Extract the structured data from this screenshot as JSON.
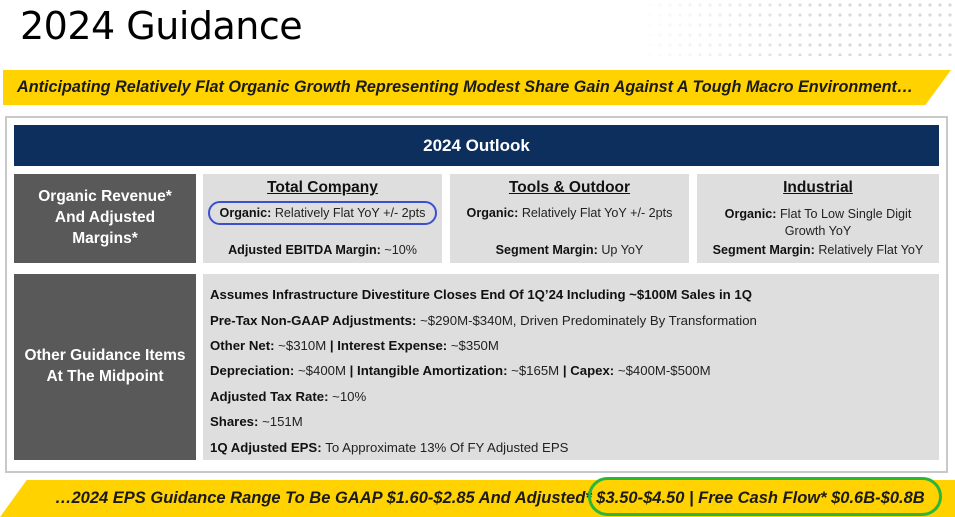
{
  "title": "2024 Guidance",
  "top_banner": "Anticipating Relatively Flat Organic Growth Representing Modest Share Gain Against A Tough Macro Environment…",
  "outlook_header": "2024 Outlook",
  "side_labels": {
    "organic": "Organic Revenue* And Adjusted Margins*",
    "other": "Other Guidance Items At The Midpoint"
  },
  "cards": [
    {
      "title": "Total Company",
      "line1_label": "Organic:",
      "line1_value": "Relatively Flat YoY +/- 2pts",
      "line2_label": "Adjusted EBITDA Margin:",
      "line2_value": "~10%"
    },
    {
      "title": "Tools & Outdoor",
      "line1_label": "Organic:",
      "line1_value": "Relatively Flat YoY +/- 2pts",
      "line2_label": "Segment Margin:",
      "line2_value": "Up YoY"
    },
    {
      "title": "Industrial",
      "line1_label": "Organic:",
      "line1_value": "Flat To Low Single Digit Growth YoY",
      "line2_label": "Segment Margin:",
      "line2_value": "Relatively Flat YoY"
    }
  ],
  "guidance": {
    "infra": "Assumes Infrastructure Divestiture Closes End Of 1Q’24 Including ~$100M Sales in 1Q",
    "pretax_label": "Pre-Tax Non-GAAP Adjustments:",
    "pretax_value": "~$290M-$340M, Driven Predominately By Transformation",
    "othernet_label": "Other Net:",
    "othernet_value": "~$310M",
    "sep": "|",
    "interest_label": "Interest Expense:",
    "interest_value": "~$350M",
    "dep_label": "Depreciation:",
    "dep_value": "~$400M",
    "amort_label": "Intangible Amortization:",
    "amort_value": "~$165M",
    "capex_label": "Capex:",
    "capex_value": "~$400M-$500M",
    "tax_label": "Adjusted Tax Rate:",
    "tax_value": "~10%",
    "shares_label": "Shares:",
    "shares_value": "~151M",
    "eps_label": "1Q Adjusted EPS:",
    "eps_value": "To Approximate 13% Of FY Adjusted EPS"
  },
  "bottom_banner": "…2024 EPS Guidance Range To Be GAAP $1.60-$2.85 And Adjusted* $3.50-$4.50 | Free Cash Flow* $0.6B-$0.8B",
  "colors": {
    "banner_yellow": "#ffd200",
    "header_navy": "#0c2f5e",
    "label_gray": "#595959",
    "card_gray": "#dedede",
    "highlight_blue": "#3b4fd0",
    "highlight_green": "#2bb539"
  }
}
